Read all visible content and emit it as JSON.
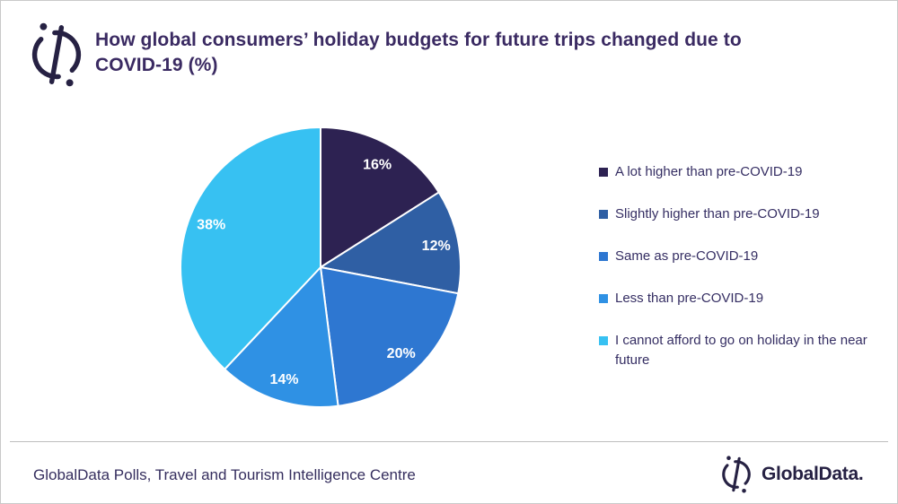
{
  "header": {
    "title_lines": [
      "How global consumers’ holiday budgets for future trips changed due to",
      "COVID-19 (%)"
    ]
  },
  "chart_data": {
    "type": "pie",
    "title": "How global consumers’ holiday budgets for future trips changed due to COVID-19 (%)",
    "unit": "%",
    "start_angle_deg": -90,
    "direction": "clockwise",
    "legend_position": "right",
    "data_label_color": "#ffffff",
    "slices": [
      {
        "label": "A lot higher than pre-COVID-19",
        "value": 16,
        "data_label": "16%",
        "color": "#2d2252"
      },
      {
        "label": "Slightly higher than pre-COVID-19",
        "value": 12,
        "data_label": "12%",
        "color": "#2f5fa4"
      },
      {
        "label": "Same as pre-COVID-19",
        "value": 20,
        "data_label": "20%",
        "color": "#2e77d1"
      },
      {
        "label": "Less than pre-COVID-19",
        "value": 14,
        "data_label": "14%",
        "color": "#2f91e4"
      },
      {
        "label": "I cannot afford to go on holiday in the near future",
        "value": 38,
        "data_label": "38%",
        "color": "#37c1f2"
      }
    ]
  },
  "footer": {
    "source_text": "GlobalData Polls, Travel and Tourism Intelligence Centre",
    "brand_text": "GlobalData."
  }
}
